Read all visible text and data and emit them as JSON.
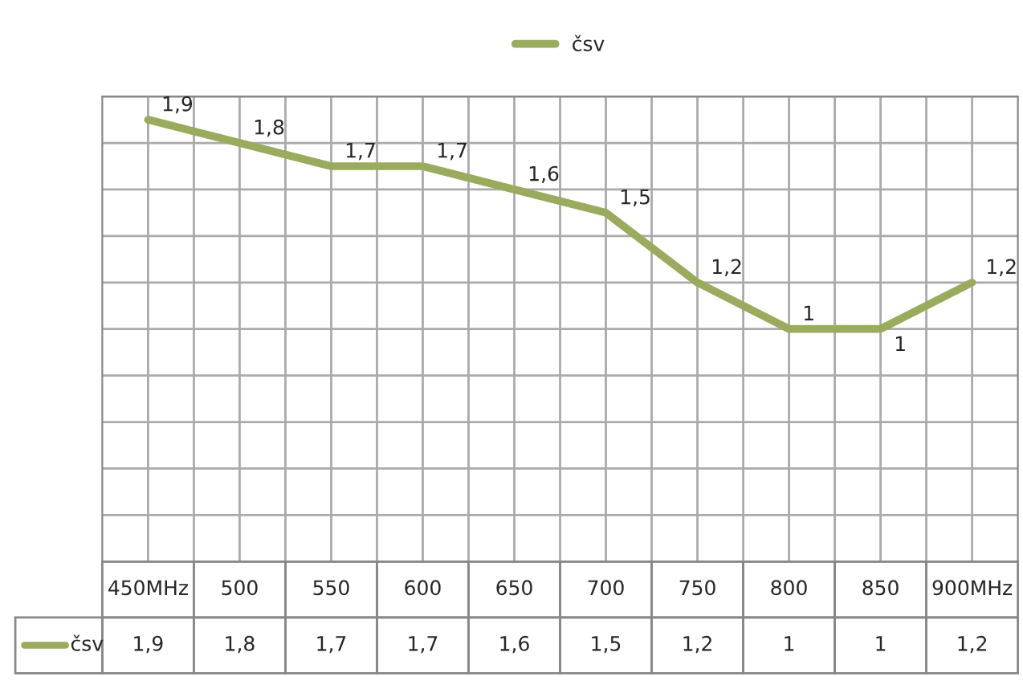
{
  "chart_data": {
    "type": "line",
    "categories": [
      "450MHz",
      "500",
      "550",
      "600",
      "650",
      "700",
      "750",
      "800",
      "850",
      "900MHz"
    ],
    "series": [
      {
        "name": "čsv",
        "color": "#9bab5e",
        "values": [
          1.9,
          1.8,
          1.7,
          1.7,
          1.6,
          1.5,
          1.2,
          1,
          1,
          1.2
        ],
        "value_labels": [
          "1,9",
          "1,8",
          "1,7",
          "1,7",
          "1,6",
          "1,5",
          "1,2",
          "1",
          "1",
          "1,2"
        ]
      }
    ],
    "ylim": [
      0,
      2
    ],
    "yticks": [
      {
        "value": 0,
        "label": null
      },
      {
        "value": 0.2,
        "label": null
      },
      {
        "value": 0.4,
        "label": null
      },
      {
        "value": 0.6,
        "label": null
      },
      {
        "value": 0.8,
        "label": null
      },
      {
        "value": 1,
        "label": null
      },
      {
        "value": 1.2,
        "label": null
      },
      {
        "value": 1.4,
        "label": null
      },
      {
        "value": 1.6,
        "label": null
      },
      {
        "value": 1.8,
        "label": null
      },
      {
        "value": 2,
        "label": null
      }
    ],
    "grid": true,
    "legend": "top",
    "marker": "none",
    "line_style": "solid"
  }
}
